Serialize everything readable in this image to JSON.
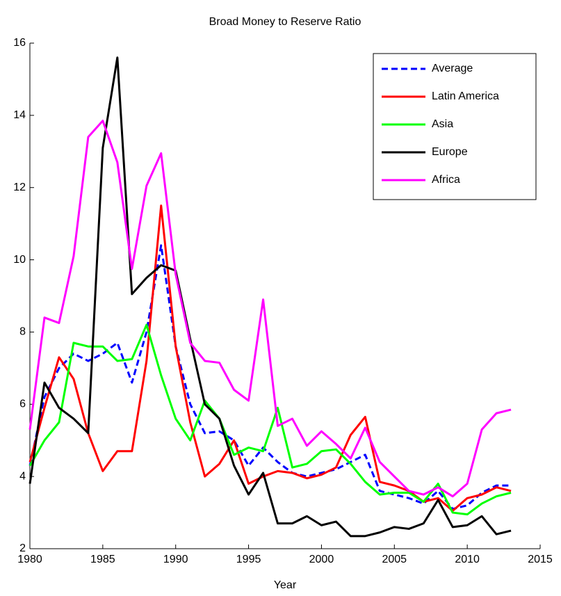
{
  "chart_data": {
    "type": "line",
    "title": "Broad Money to Reserve Ratio",
    "xlabel": "Year",
    "x": [
      1980,
      1981,
      1982,
      1983,
      1984,
      1985,
      1986,
      1987,
      1988,
      1989,
      1990,
      1991,
      1992,
      1993,
      1994,
      1995,
      1996,
      1997,
      1998,
      1999,
      2000,
      2001,
      2002,
      2003,
      2004,
      2005,
      2006,
      2007,
      2008,
      2009,
      2010,
      2011,
      2012,
      2013
    ],
    "series": [
      {
        "name": "Average",
        "color": "#0000ff",
        "dashed": true,
        "values": [
          4.3,
          6.2,
          7.0,
          7.4,
          7.2,
          7.4,
          7.7,
          6.6,
          8.0,
          10.4,
          7.6,
          6.0,
          5.2,
          5.25,
          5.0,
          4.3,
          4.8,
          4.4,
          4.1,
          4.0,
          4.1,
          4.2,
          4.4,
          4.6,
          3.6,
          3.5,
          3.4,
          3.25,
          3.6,
          3.1,
          3.2,
          3.55,
          3.75,
          3.75
        ]
      },
      {
        "name": "Latin America",
        "color": "#ff0000",
        "dashed": false,
        "values": [
          4.4,
          5.9,
          7.3,
          6.7,
          5.2,
          4.15,
          4.7,
          4.7,
          7.2,
          11.5,
          7.6,
          5.5,
          4.0,
          4.35,
          5.0,
          3.8,
          4.0,
          4.15,
          4.1,
          3.95,
          4.05,
          4.25,
          5.15,
          5.65,
          3.85,
          3.75,
          3.6,
          3.3,
          3.4,
          3.05,
          3.4,
          3.5,
          3.7,
          3.6
        ]
      },
      {
        "name": "Asia",
        "color": "#00ff00",
        "dashed": false,
        "values": [
          4.3,
          5.0,
          5.5,
          7.7,
          7.6,
          7.6,
          7.2,
          7.25,
          8.2,
          6.8,
          5.6,
          5.0,
          6.1,
          5.6,
          4.6,
          4.8,
          4.7,
          5.9,
          4.25,
          4.35,
          4.7,
          4.75,
          4.35,
          3.85,
          3.5,
          3.55,
          3.55,
          3.3,
          3.8,
          3.0,
          2.95,
          3.25,
          3.45,
          3.55
        ]
      },
      {
        "name": "Europe",
        "color": "#000000",
        "dashed": false,
        "values": [
          3.8,
          6.6,
          5.9,
          5.6,
          5.2,
          13.1,
          15.6,
          9.05,
          9.5,
          9.85,
          9.7,
          7.8,
          6.0,
          5.6,
          4.3,
          3.5,
          4.1,
          2.7,
          2.7,
          2.9,
          2.65,
          2.75,
          2.35,
          2.35,
          2.45,
          2.6,
          2.55,
          2.7,
          3.35,
          2.6,
          2.65,
          2.9,
          2.4,
          2.5
        ]
      },
      {
        "name": "Africa",
        "color": "#ff00ff",
        "dashed": false,
        "values": [
          5.3,
          8.4,
          8.25,
          10.1,
          13.4,
          13.85,
          12.7,
          9.75,
          12.05,
          12.95,
          9.6,
          7.7,
          7.2,
          7.15,
          6.4,
          6.1,
          8.9,
          5.4,
          5.6,
          4.85,
          5.25,
          4.9,
          4.5,
          5.35,
          4.4,
          4.0,
          3.6,
          3.5,
          3.7,
          3.45,
          3.8,
          5.3,
          5.75,
          5.85
        ]
      }
    ],
    "xlim": [
      1980,
      2015
    ],
    "xticks": [
      1980,
      1985,
      1990,
      1995,
      2000,
      2005,
      2010,
      2015
    ],
    "ylim": [
      2,
      16
    ],
    "yticks": [
      2,
      4,
      6,
      8,
      10,
      12,
      14,
      16
    ],
    "legend": "upper right"
  }
}
